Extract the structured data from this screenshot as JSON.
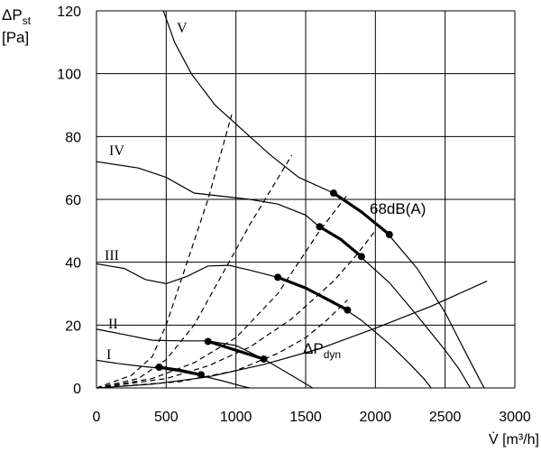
{
  "chart_data": {
    "type": "line",
    "ylabel_main": "ΔP",
    "ylabel_sub": "st",
    "ylabel_unit": "[Pa]",
    "xlabel": "V̇ [m³/h]",
    "xlim": [
      0,
      3000
    ],
    "ylim": [
      0,
      120
    ],
    "xticks": [
      0,
      500,
      1000,
      1500,
      2000,
      2500,
      3000
    ],
    "yticks": [
      0,
      20,
      40,
      60,
      80,
      100,
      120
    ],
    "grid": true,
    "annotation_noise": "68dB(A)",
    "dyn_label_main": "ΔP",
    "dyn_label_sub": "dyn",
    "fan_curves": [
      {
        "name": "I",
        "points": [
          [
            0,
            8.8
          ],
          [
            150,
            7.8
          ],
          [
            300,
            7
          ],
          [
            450,
            6.3
          ],
          [
            600,
            5.2
          ],
          [
            750,
            3.9
          ],
          [
            900,
            2.3
          ],
          [
            1050,
            0.5
          ],
          [
            1100,
            0
          ]
        ]
      },
      {
        "name": "II",
        "points": [
          [
            0,
            18.7
          ],
          [
            200,
            17
          ],
          [
            400,
            15.2
          ],
          [
            600,
            15
          ],
          [
            800,
            15
          ],
          [
            1000,
            13.5
          ],
          [
            1200,
            9.2
          ],
          [
            1400,
            4
          ],
          [
            1550,
            0
          ]
        ]
      },
      {
        "name": "III",
        "points": [
          [
            0,
            39.5
          ],
          [
            200,
            38
          ],
          [
            350,
            34.5
          ],
          [
            500,
            33.2
          ],
          [
            650,
            35.5
          ],
          [
            800,
            38.8
          ],
          [
            950,
            39
          ],
          [
            1100,
            37.5
          ],
          [
            1300,
            35.2
          ],
          [
            1500,
            32
          ],
          [
            1700,
            27.5
          ],
          [
            1900,
            21.5
          ],
          [
            2100,
            14
          ],
          [
            2250,
            7.5
          ],
          [
            2350,
            2.8
          ],
          [
            2400,
            0
          ]
        ]
      },
      {
        "name": "IV",
        "points": [
          [
            0,
            72
          ],
          [
            300,
            70
          ],
          [
            500,
            67
          ],
          [
            700,
            62
          ],
          [
            900,
            61
          ],
          [
            1100,
            60
          ],
          [
            1300,
            58.5
          ],
          [
            1500,
            55
          ],
          [
            1600,
            51.2
          ],
          [
            1750,
            47.5
          ],
          [
            1900,
            41.5
          ],
          [
            2100,
            33.5
          ],
          [
            2300,
            23
          ],
          [
            2500,
            12
          ],
          [
            2600,
            6
          ],
          [
            2680,
            0
          ]
        ]
      },
      {
        "name": "V",
        "points": [
          [
            480,
            120
          ],
          [
            560,
            110
          ],
          [
            680,
            100
          ],
          [
            850,
            90
          ],
          [
            1050,
            82
          ],
          [
            1250,
            74
          ],
          [
            1450,
            67
          ],
          [
            1700,
            62
          ],
          [
            1900,
            56
          ],
          [
            2100,
            48.5
          ],
          [
            2300,
            38
          ],
          [
            2500,
            24
          ],
          [
            2650,
            11
          ],
          [
            2750,
            2.5
          ],
          [
            2780,
            0
          ]
        ]
      }
    ],
    "system_curves": [
      {
        "points": [
          [
            0,
            0
          ],
          [
            250,
            4
          ],
          [
            400,
            10
          ],
          [
            500,
            20
          ],
          [
            650,
            40
          ],
          [
            800,
            60
          ],
          [
            970,
            87
          ]
        ]
      },
      {
        "points": [
          [
            0,
            0
          ],
          [
            300,
            3
          ],
          [
            500,
            9
          ],
          [
            700,
            20
          ],
          [
            900,
            36
          ],
          [
            1100,
            52
          ],
          [
            1400,
            74
          ]
        ]
      },
      {
        "points": [
          [
            0,
            0
          ],
          [
            400,
            3
          ],
          [
            700,
            8
          ],
          [
            1000,
            16
          ],
          [
            1300,
            30
          ],
          [
            1600,
            50
          ],
          [
            1800,
            61.5
          ]
        ]
      },
      {
        "points": [
          [
            0,
            0
          ],
          [
            500,
            3
          ],
          [
            800,
            7
          ],
          [
            1100,
            13
          ],
          [
            1400,
            22
          ],
          [
            1700,
            34
          ],
          [
            1850,
            41.5
          ],
          [
            2000,
            50
          ]
        ]
      },
      {
        "points": [
          [
            0,
            0
          ],
          [
            600,
            2
          ],
          [
            1000,
            5.5
          ],
          [
            1300,
            11
          ],
          [
            1500,
            16
          ],
          [
            1650,
            21.5
          ],
          [
            1800,
            28
          ]
        ]
      }
    ],
    "dyn_curve": {
      "points": [
        [
          0,
          0
        ],
        [
          400,
          1.2
        ],
        [
          800,
          3.5
        ],
        [
          1200,
          7.5
        ],
        [
          1600,
          12.5
        ],
        [
          2000,
          19
        ],
        [
          2400,
          26
        ],
        [
          2800,
          34
        ]
      ]
    },
    "operating_ranges": [
      {
        "points": [
          [
            450,
            6.6
          ],
          [
            600,
            5.6
          ],
          [
            750,
            4.2
          ]
        ]
      },
      {
        "points": [
          [
            800,
            14.8
          ],
          [
            1000,
            12
          ],
          [
            1200,
            9.2
          ]
        ]
      },
      {
        "points": [
          [
            1300,
            35.2
          ],
          [
            1500,
            31.8
          ],
          [
            1800,
            24.8
          ]
        ]
      },
      {
        "points": [
          [
            1600,
            51.3
          ],
          [
            1750,
            47.3
          ],
          [
            1900,
            41.8
          ]
        ]
      },
      {
        "points": [
          [
            1700,
            62
          ],
          [
            1900,
            56
          ],
          [
            2100,
            48.8
          ]
        ]
      }
    ]
  }
}
